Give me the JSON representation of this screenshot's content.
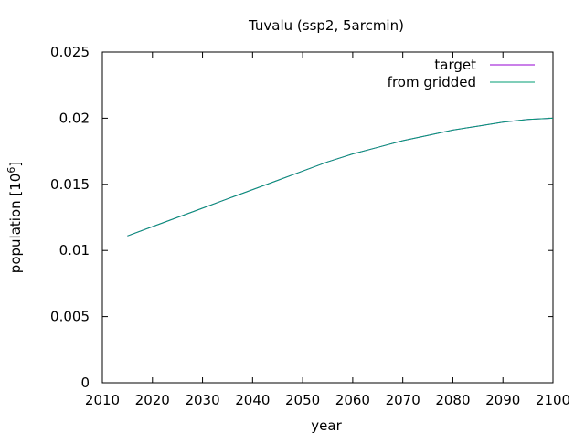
{
  "chart_data": {
    "type": "line",
    "title": "Tuvalu (ssp2, 5arcmin)",
    "xlabel": "year",
    "ylabel_main": "population [10",
    "ylabel_sup": "6",
    "ylabel_end": "]",
    "xlim": [
      2010,
      2100
    ],
    "ylim": [
      0,
      0.025
    ],
    "xticks": [
      2010,
      2020,
      2030,
      2040,
      2050,
      2060,
      2070,
      2080,
      2090,
      2100
    ],
    "xtick_labels": [
      "2010",
      "2020",
      "2030",
      "2040",
      "2050",
      "2060",
      "2070",
      "2080",
      "2090",
      "2100"
    ],
    "yticks": [
      0,
      0.005,
      0.01,
      0.015,
      0.02,
      0.025
    ],
    "ytick_labels": [
      "0",
      "0.005",
      "0.01",
      "0.015",
      "0.02",
      "0.025"
    ],
    "grid": false,
    "legend_position": "top-right",
    "x": [
      2015,
      2020,
      2025,
      2030,
      2035,
      2040,
      2045,
      2050,
      2055,
      2060,
      2065,
      2070,
      2075,
      2080,
      2085,
      2090,
      2095,
      2100
    ],
    "series": [
      {
        "name": "target",
        "color": "#9400d3",
        "values": [
          0.0111,
          0.0118,
          0.0125,
          0.0132,
          0.0139,
          0.0146,
          0.0153,
          0.016,
          0.0167,
          0.0173,
          0.0178,
          0.0183,
          0.0187,
          0.0191,
          0.0194,
          0.0197,
          0.0199,
          0.02
        ]
      },
      {
        "name": "from gridded",
        "color": "#009e73",
        "values": [
          0.0111,
          0.0118,
          0.0125,
          0.0132,
          0.0139,
          0.0146,
          0.0153,
          0.016,
          0.0167,
          0.0173,
          0.0178,
          0.0183,
          0.0187,
          0.0191,
          0.0194,
          0.0197,
          0.0199,
          0.02
        ]
      }
    ]
  }
}
